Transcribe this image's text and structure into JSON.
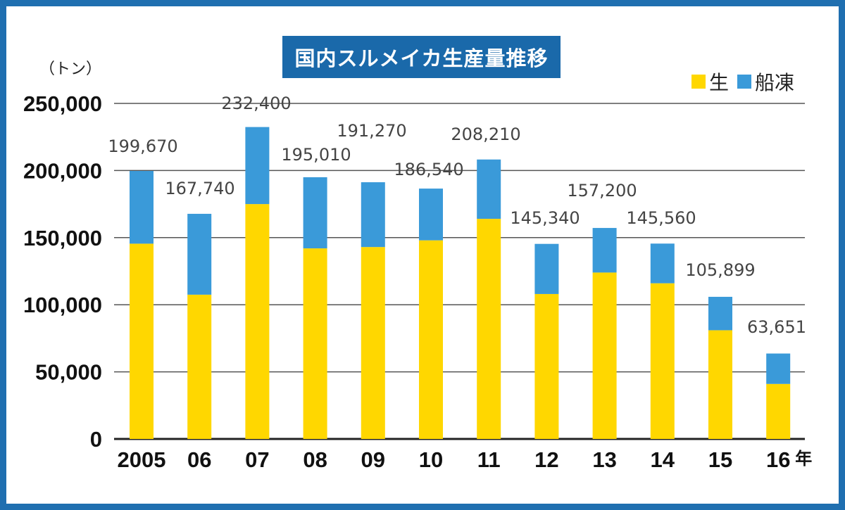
{
  "chart_data": {
    "type": "bar",
    "stacked": true,
    "title": "国内スルメイカ生産量推移",
    "ylabel": "（トン）",
    "x_suffix": "年",
    "ylim": [
      0,
      250000
    ],
    "yticks": [
      0,
      50000,
      100000,
      150000,
      200000,
      250000
    ],
    "ytick_labels": [
      "0",
      "50,000",
      "100,000",
      "150,000",
      "200,000",
      "250,000"
    ],
    "categories": [
      "2005",
      "06",
      "07",
      "08",
      "09",
      "10",
      "11",
      "12",
      "13",
      "14",
      "15",
      "16"
    ],
    "series": [
      {
        "name": "生",
        "color": "#ffd700",
        "values": [
          145500,
          107500,
          175000,
          142000,
          143000,
          148000,
          164000,
          108000,
          124000,
          116000,
          81000,
          41000
        ]
      },
      {
        "name": "船凍",
        "color": "#3a9ad9",
        "values": [
          54170,
          60240,
          57400,
          53010,
          48270,
          38540,
          44210,
          37340,
          33200,
          29560,
          24899,
          22651
        ]
      }
    ],
    "totals": [
      199670,
      167740,
      232400,
      195010,
      191270,
      186540,
      208210,
      145340,
      157200,
      145560,
      105899,
      63651
    ],
    "total_labels": [
      "199,670",
      "167,740",
      "232,400",
      "195,010",
      "191,270",
      "186,540",
      "208,210",
      "145,340",
      "157,200",
      "145,560",
      "105,899",
      "63,651"
    ],
    "grid": true,
    "legend_position": "top-right"
  }
}
